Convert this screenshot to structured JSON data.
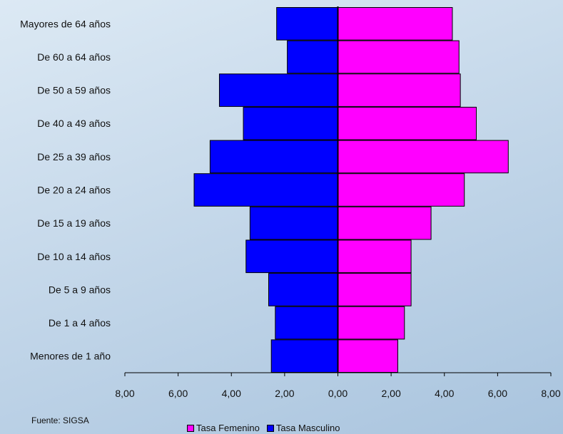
{
  "chart_data": {
    "type": "bar",
    "orientation": "horizontal-population-pyramid",
    "categories": [
      "Mayores de 64 años",
      "De 60 a 64 años",
      "De 50 a 59 años",
      "De 40 a 49 años",
      "De 25 a 39 años",
      "De 20 a 24 años",
      "De 15 a 19 años",
      "De 10 a 14 años",
      "De 5 a 9 años",
      "De 1 a 4 años",
      "Menores de 1 año"
    ],
    "series": [
      {
        "name": "Tasa Femenino",
        "color": "#ff00ff",
        "side": "right",
        "values": [
          4.3,
          4.55,
          4.6,
          5.2,
          6.4,
          4.75,
          3.5,
          2.75,
          2.75,
          2.5,
          2.25
        ]
      },
      {
        "name": "Tasa Masculino",
        "color": "#0000ff",
        "side": "left",
        "values": [
          2.3,
          1.9,
          4.45,
          3.55,
          4.8,
          5.4,
          3.3,
          3.45,
          2.6,
          2.35,
          2.5
        ]
      }
    ],
    "xlim": [
      -8,
      8
    ],
    "x_ticks": [
      "8,00",
      "6,00",
      "4,00",
      "2,00",
      "0,00",
      "2,00",
      "4,00",
      "6,00",
      "8,00"
    ],
    "grid": false,
    "legend_position": "bottom"
  },
  "source_text": "Fuente: SIGSA"
}
